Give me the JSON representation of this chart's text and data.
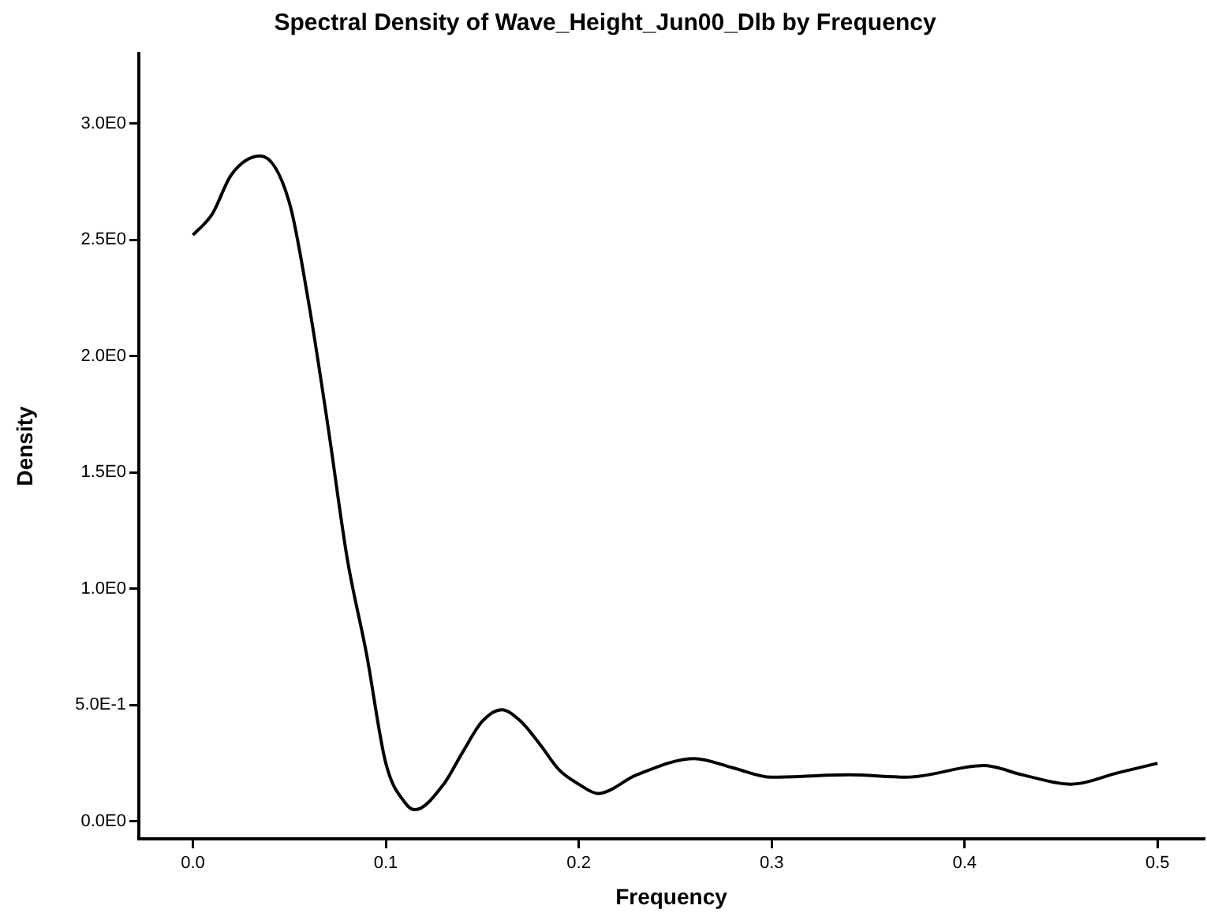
{
  "chart_data": {
    "type": "line",
    "title": "Spectral Density of Wave_Height_Jun00_Dlb by Frequency",
    "xlabel": "Frequency",
    "ylabel": "Density",
    "x": [
      0.0,
      0.01,
      0.02,
      0.035,
      0.05,
      0.06,
      0.07,
      0.08,
      0.09,
      0.1,
      0.11,
      0.115,
      0.13,
      0.14,
      0.15,
      0.16,
      0.17,
      0.18,
      0.19,
      0.2,
      0.21,
      0.23,
      0.26,
      0.28,
      0.3,
      0.34,
      0.37,
      0.41,
      0.43,
      0.455,
      0.48,
      0.5
    ],
    "series": [
      {
        "color": "#000000",
        "values": [
          2.52,
          2.61,
          2.78,
          2.86,
          2.66,
          2.23,
          1.7,
          1.13,
          0.72,
          0.25,
          0.08,
          0.05,
          0.16,
          0.3,
          0.43,
          0.48,
          0.43,
          0.33,
          0.22,
          0.16,
          0.12,
          0.2,
          0.27,
          0.23,
          0.19,
          0.2,
          0.19,
          0.24,
          0.2,
          0.16,
          0.21,
          0.25
        ]
      }
    ],
    "xlim": [
      -0.028,
      0.524
    ],
    "xticks": [
      {
        "value": 0,
        "label": "0.0"
      },
      0.1,
      0.2,
      0.3,
      0.4,
      0.5
    ],
    "ylim": [
      -0.075,
      3.3
    ],
    "yticks": [
      {
        "value": 0,
        "label": "0.0E0"
      },
      {
        "value": 0.5,
        "label": "5.0E-1"
      },
      {
        "value": 1,
        "label": "1.0E0"
      },
      {
        "value": 1.5,
        "label": "1.5E0"
      },
      {
        "value": 2,
        "label": "2.0E0"
      },
      {
        "value": 2.5,
        "label": "2.5E0"
      },
      {
        "value": 3,
        "label": "3.0E0"
      }
    ],
    "grid": false,
    "legend": false,
    "marker": "none",
    "line_style": "solid"
  }
}
